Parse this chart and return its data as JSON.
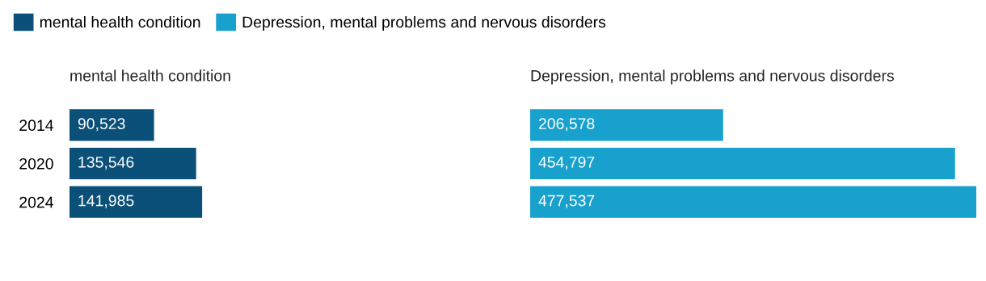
{
  "chart_data": [
    {
      "type": "bar",
      "orientation": "horizontal",
      "title": "mental health condition",
      "categories": [
        "2014",
        "2020",
        "2024"
      ],
      "legend": "top left",
      "tick_labels": "y",
      "series": [
        {
          "name": "mental health condition",
          "color": "#0b5079",
          "values": [
            90523,
            135546,
            141985
          ],
          "value_labels": [
            "90,523",
            "135,546",
            "141,985"
          ]
        }
      ]
    },
    {
      "type": "bar",
      "orientation": "horizontal",
      "title": "Depression, mental problems and nervous disorders",
      "categories": [
        "2014",
        "2020",
        "2024"
      ],
      "tick_labels": false,
      "series": [
        {
          "name": "Depression, mental problems and nervous disorders",
          "color": "#18a1cd",
          "values": [
            206578,
            454797,
            477537
          ],
          "value_labels": [
            "206,578",
            "454,797",
            "477,537"
          ]
        }
      ]
    }
  ]
}
